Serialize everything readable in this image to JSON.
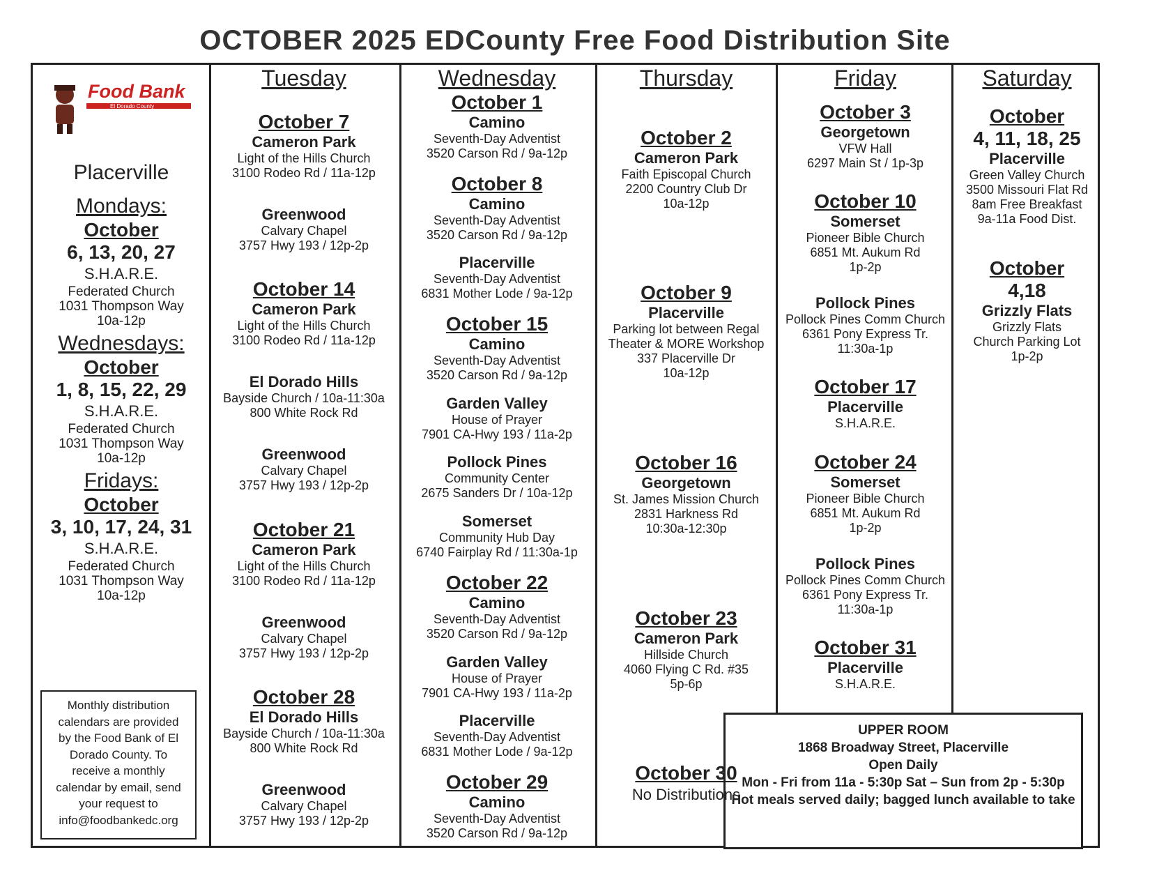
{
  "title": "OCTOBER 2025 EDCounty Free Food Distribution Site",
  "logo": {
    "name": "Food Bank",
    "subtitle": "El Dorado County"
  },
  "monthly": {
    "city": "Placerville",
    "sections": [
      {
        "day": "Mondays:",
        "month": "October",
        "dates": "6, 13, 20, 27",
        "site": "S.H.A.R.E.",
        "details": [
          "Federated Church",
          "1031 Thompson Way",
          "10a-12p"
        ]
      },
      {
        "day": "Wednesdays:",
        "month": "October",
        "dates": "1, 8, 15, 22, 29",
        "site": "S.H.A.R.E.",
        "details": [
          "Federated Church",
          "1031 Thompson Way",
          "10a-12p"
        ]
      },
      {
        "day": "Fridays:",
        "month": "October",
        "dates": "3, 10, 17, 24, 31",
        "site": "S.H.A.R.E.",
        "details": [
          "Federated Church",
          "1031 Thompson Way",
          "10a-12p"
        ]
      }
    ],
    "note": [
      "Monthly distribution",
      "calendars are provided",
      "by the Food Bank of El",
      "Dorado County.  To",
      "receive a monthly",
      "calendar by email, send",
      "your request to",
      "info@foodbankedc.org"
    ]
  },
  "days": [
    {
      "header": "Tuesday",
      "entries": [
        {
          "date": "October 7",
          "site": "Cameron Park",
          "details": [
            "Light of the Hills Church",
            "3100 Rodeo Rd / 11a-12p"
          ]
        },
        {
          "site": "Greenwood",
          "details": [
            "Calvary Chapel",
            "3757 Hwy 193 / 12p-2p"
          ]
        },
        {
          "date": "October 14",
          "site": "Cameron Park",
          "details": [
            "Light of the Hills Church",
            "3100 Rodeo Rd / 11a-12p"
          ]
        },
        {
          "site": "El Dorado Hills",
          "details": [
            "Bayside Church / 10a-11:30a",
            "800 White Rock Rd"
          ]
        },
        {
          "site": "Greenwood",
          "details": [
            "Calvary Chapel",
            "3757 Hwy 193 / 12p-2p"
          ]
        },
        {
          "date": "October 21",
          "site": "Cameron Park",
          "details": [
            "Light of the Hills Church",
            "3100 Rodeo Rd / 11a-12p"
          ]
        },
        {
          "site": "Greenwood",
          "details": [
            "Calvary Chapel",
            "3757 Hwy 193 / 12p-2p"
          ]
        },
        {
          "date": "October 28",
          "site": "El Dorado Hills",
          "details": [
            "Bayside Church / 10a-11:30a",
            "800 White Rock Rd"
          ]
        },
        {
          "site": "Greenwood",
          "details": [
            "Calvary Chapel",
            "3757 Hwy 193 / 12p-2p"
          ]
        }
      ]
    },
    {
      "header": "Wednesday",
      "entries": [
        {
          "date": "October 1",
          "site": "Camino",
          "details": [
            "Seventh-Day Adventist",
            "3520 Carson Rd / 9a-12p"
          ]
        },
        {
          "date": "October 8",
          "site": "Camino",
          "details": [
            "Seventh-Day Adventist",
            "3520 Carson Rd / 9a-12p"
          ]
        },
        {
          "site": "Placerville",
          "details": [
            "Seventh-Day Adventist",
            "6831 Mother Lode / 9a-12p"
          ]
        },
        {
          "date": "October 15",
          "site": "Camino",
          "details": [
            "Seventh-Day Adventist",
            "3520 Carson Rd / 9a-12p"
          ]
        },
        {
          "site": "Garden Valley",
          "details": [
            "House of Prayer",
            "7901 CA-Hwy 193 / 11a-2p"
          ]
        },
        {
          "site": "Pollock Pines",
          "details": [
            "Community Center",
            "2675 Sanders Dr / 10a-12p"
          ]
        },
        {
          "site": "Somerset",
          "details": [
            "Community Hub Day",
            "6740 Fairplay Rd / 11:30a-1p"
          ]
        },
        {
          "date": "October 22",
          "site": "Camino",
          "details": [
            "Seventh-Day Adventist",
            "3520 Carson Rd / 9a-12p"
          ]
        },
        {
          "site": "Garden Valley",
          "details": [
            "House of Prayer",
            "7901 CA-Hwy 193 / 11a-2p"
          ]
        },
        {
          "site": "Placerville",
          "details": [
            "Seventh-Day Adventist",
            "6831 Mother Lode / 9a-12p"
          ]
        },
        {
          "date": "October 29",
          "site": "Camino",
          "details": [
            "Seventh-Day Adventist",
            "3520 Carson Rd / 9a-12p"
          ]
        }
      ]
    },
    {
      "header": "Thursday",
      "entries": [
        {
          "date": "October 2",
          "site": "Cameron Park",
          "details": [
            "Faith Episcopal Church",
            "2200 Country Club Dr",
            "10a-12p"
          ]
        },
        {
          "date": "October 9",
          "site": "Placerville",
          "details": [
            "Parking lot between Regal",
            "Theater & MORE Workshop",
            "337 Placerville Dr",
            "10a-12p"
          ]
        },
        {
          "date": "October 16",
          "site": "Georgetown",
          "details": [
            "St. James Mission Church",
            "2831 Harkness Rd",
            "10:30a-12:30p"
          ]
        },
        {
          "date": "October 23",
          "site": "Cameron Park",
          "details": [
            "Hillside Church",
            "4060 Flying C Rd. #35",
            "5p-6p"
          ]
        },
        {
          "date": "October 30",
          "details": [
            "No Distributions"
          ]
        }
      ]
    },
    {
      "header": "Friday",
      "entries": [
        {
          "date": "October 3",
          "site": "Georgetown",
          "details": [
            "VFW Hall",
            "6297 Main St / 1p-3p"
          ]
        },
        {
          "date": "October 10",
          "site": "Somerset",
          "details": [
            "Pioneer Bible Church",
            "6851 Mt. Aukum Rd",
            "1p-2p"
          ]
        },
        {
          "site": "Pollock Pines",
          "details": [
            "Pollock Pines Comm Church",
            "6361 Pony Express Tr.",
            "11:30a-1p"
          ]
        },
        {
          "date": "October 17",
          "site": "Placerville",
          "details": [
            "S.H.A.R.E."
          ]
        },
        {
          "date": "October 24",
          "site": "Somerset",
          "details": [
            "Pioneer Bible Church",
            "6851 Mt. Aukum Rd",
            "1p-2p"
          ]
        },
        {
          "site": "Pollock Pines",
          "details": [
            "Pollock Pines Comm Church",
            "6361 Pony Express Tr.",
            "11:30a-1p"
          ]
        },
        {
          "date": "October 31",
          "site": "Placerville",
          "details": [
            "S.H.A.R.E."
          ]
        }
      ]
    },
    {
      "header": "Saturday",
      "entries": [
        {
          "date": "October",
          "dates": "4, 11, 18, 25",
          "site": "Placerville",
          "details": [
            "Green Valley Church",
            "3500 Missouri Flat Rd",
            "8am Free Breakfast",
            "9a-11a Food Dist."
          ]
        },
        {
          "date": "October",
          "dates": "4,18",
          "site": "Grizzly Flats",
          "details": [
            "Grizzly Flats",
            "Church Parking Lot",
            "1p-2p"
          ]
        }
      ]
    }
  ],
  "upper_room": [
    "UPPER ROOM",
    "1868 Broadway Street, Placerville",
    "Open Daily",
    "Mon - Fri from 11a - 5:30p Sat – Sun from 2p - 5:30p",
    "Hot meals served daily; bagged lunch available to take"
  ]
}
